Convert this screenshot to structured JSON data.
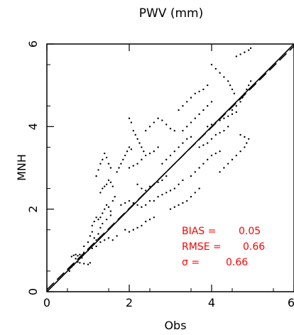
{
  "chart_data": {
    "type": "scatter",
    "title": "PWV (mm)",
    "xlabel": "Obs",
    "ylabel": "MNH",
    "xlim": [
      0,
      6
    ],
    "ylim": [
      0,
      6
    ],
    "xticks": [
      "0",
      "2",
      "4",
      "6"
    ],
    "yticks": [
      "0",
      "2",
      "4",
      "6"
    ],
    "grid": false,
    "legend": "none",
    "reference_lines": [
      {
        "name": "1:1",
        "style": "solid",
        "x": [
          0,
          6
        ],
        "y": [
          0,
          6
        ]
      },
      {
        "name": "fit",
        "style": "dashed",
        "x": [
          0,
          6
        ],
        "y": [
          0.05,
          5.95
        ]
      }
    ],
    "stats": {
      "bias_label": "BIAS =",
      "bias_value": "0.05",
      "rmse_label": "RMSE =",
      "rmse_value": "0.66",
      "sigma_label": "σ =",
      "sigma_value": "0.66",
      "color": "#ff0000"
    },
    "point_color": "#000000",
    "points": [
      [
        0.55,
        0.5
      ],
      [
        0.6,
        0.6
      ],
      [
        0.65,
        0.65
      ],
      [
        0.7,
        0.8
      ],
      [
        0.75,
        0.72
      ],
      [
        0.8,
        0.9
      ],
      [
        0.85,
        0.82
      ],
      [
        0.9,
        0.95
      ],
      [
        0.6,
        0.85
      ],
      [
        0.65,
        0.88
      ],
      [
        0.7,
        0.9
      ],
      [
        0.75,
        0.87
      ],
      [
        0.8,
        0.7
      ],
      [
        0.9,
        0.68
      ],
      [
        1.0,
        0.66
      ],
      [
        1.05,
        0.7
      ],
      [
        0.9,
        1.1
      ],
      [
        1.0,
        1.2
      ],
      [
        1.05,
        1.35
      ],
      [
        1.1,
        1.45
      ],
      [
        1.15,
        1.3
      ],
      [
        1.2,
        1.25
      ],
      [
        1.25,
        1.4
      ],
      [
        1.3,
        1.55
      ],
      [
        1.0,
        1.0
      ],
      [
        1.1,
        1.05
      ],
      [
        1.2,
        1.1
      ],
      [
        1.3,
        1.2
      ],
      [
        1.4,
        1.25
      ],
      [
        1.5,
        1.3
      ],
      [
        1.6,
        1.25
      ],
      [
        1.7,
        1.35
      ],
      [
        1.3,
        1.8
      ],
      [
        1.35,
        1.9
      ],
      [
        1.4,
        2.0
      ],
      [
        1.45,
        2.1
      ],
      [
        1.5,
        2.05
      ],
      [
        1.55,
        1.95
      ],
      [
        1.6,
        2.2
      ],
      [
        1.65,
        2.3
      ],
      [
        1.1,
        1.6
      ],
      [
        1.15,
        1.7
      ],
      [
        1.2,
        1.8
      ],
      [
        1.25,
        1.75
      ],
      [
        1.35,
        1.65
      ],
      [
        1.45,
        1.75
      ],
      [
        1.55,
        1.85
      ],
      [
        1.2,
        2.8
      ],
      [
        1.25,
        2.95
      ],
      [
        1.3,
        3.1
      ],
      [
        1.35,
        3.2
      ],
      [
        1.4,
        3.35
      ],
      [
        1.45,
        3.25
      ],
      [
        1.5,
        3.1
      ],
      [
        1.55,
        3.0
      ],
      [
        1.3,
        2.4
      ],
      [
        1.35,
        2.5
      ],
      [
        1.4,
        2.55
      ],
      [
        1.45,
        2.6
      ],
      [
        1.5,
        2.7
      ],
      [
        1.55,
        2.65
      ],
      [
        1.6,
        2.55
      ],
      [
        1.7,
        2.9
      ],
      [
        1.75,
        3.0
      ],
      [
        1.8,
        3.1
      ],
      [
        1.85,
        3.2
      ],
      [
        1.9,
        3.3
      ],
      [
        1.95,
        3.4
      ],
      [
        2.0,
        3.5
      ],
      [
        2.05,
        3.45
      ],
      [
        1.8,
        2.1
      ],
      [
        1.9,
        2.15
      ],
      [
        2.0,
        2.2
      ],
      [
        2.1,
        2.15
      ],
      [
        2.2,
        2.1
      ],
      [
        2.3,
        2.05
      ],
      [
        2.4,
        2.1
      ],
      [
        2.5,
        2.2
      ],
      [
        1.9,
        1.5
      ],
      [
        2.0,
        1.45
      ],
      [
        2.1,
        1.5
      ],
      [
        2.2,
        1.55
      ],
      [
        2.3,
        1.6
      ],
      [
        2.4,
        1.7
      ],
      [
        2.5,
        1.75
      ],
      [
        2.6,
        1.8
      ],
      [
        2.0,
        4.2
      ],
      [
        2.05,
        4.1
      ],
      [
        2.1,
        3.9
      ],
      [
        2.15,
        3.8
      ],
      [
        2.2,
        3.7
      ],
      [
        2.25,
        3.6
      ],
      [
        2.3,
        3.5
      ],
      [
        2.35,
        3.4
      ],
      [
        2.0,
        3.0
      ],
      [
        2.1,
        3.05
      ],
      [
        2.2,
        3.1
      ],
      [
        2.3,
        3.2
      ],
      [
        2.4,
        3.3
      ],
      [
        2.5,
        3.35
      ],
      [
        2.6,
        3.4
      ],
      [
        2.7,
        3.5
      ],
      [
        2.2,
        2.6
      ],
      [
        2.3,
        2.5
      ],
      [
        2.4,
        2.45
      ],
      [
        2.5,
        2.55
      ],
      [
        2.6,
        2.6
      ],
      [
        2.7,
        2.65
      ],
      [
        2.8,
        2.7
      ],
      [
        2.9,
        2.8
      ],
      [
        2.4,
        3.9
      ],
      [
        2.5,
        4.0
      ],
      [
        2.6,
        4.1
      ],
      [
        2.7,
        4.2
      ],
      [
        2.8,
        4.15
      ],
      [
        2.9,
        4.05
      ],
      [
        3.0,
        3.95
      ],
      [
        3.1,
        3.9
      ],
      [
        2.6,
        2.2
      ],
      [
        2.7,
        2.3
      ],
      [
        2.8,
        2.35
      ],
      [
        2.9,
        2.4
      ],
      [
        3.0,
        2.45
      ],
      [
        3.1,
        2.5
      ],
      [
        3.2,
        2.6
      ],
      [
        3.3,
        2.7
      ],
      [
        2.8,
        3.1
      ],
      [
        2.9,
        3.2
      ],
      [
        3.0,
        3.3
      ],
      [
        3.1,
        3.4
      ],
      [
        3.2,
        3.5
      ],
      [
        3.3,
        3.6
      ],
      [
        3.4,
        3.7
      ],
      [
        3.5,
        3.75
      ],
      [
        3.0,
        2.0
      ],
      [
        3.1,
        2.05
      ],
      [
        3.2,
        2.1
      ],
      [
        3.3,
        2.15
      ],
      [
        3.4,
        2.2
      ],
      [
        3.5,
        2.3
      ],
      [
        3.6,
        2.4
      ],
      [
        3.7,
        2.5
      ],
      [
        3.2,
        4.4
      ],
      [
        3.3,
        4.5
      ],
      [
        3.4,
        4.6
      ],
      [
        3.5,
        4.7
      ],
      [
        3.6,
        4.8
      ],
      [
        3.7,
        4.85
      ],
      [
        3.8,
        4.9
      ],
      [
        3.9,
        5.0
      ],
      [
        3.3,
        3.9
      ],
      [
        3.4,
        4.0
      ],
      [
        3.5,
        4.1
      ],
      [
        3.6,
        4.2
      ],
      [
        3.7,
        4.3
      ],
      [
        3.8,
        4.4
      ],
      [
        3.9,
        4.5
      ],
      [
        4.0,
        4.6
      ],
      [
        3.5,
        2.8
      ],
      [
        3.6,
        2.9
      ],
      [
        3.7,
        3.0
      ],
      [
        3.8,
        3.1
      ],
      [
        3.9,
        3.2
      ],
      [
        4.0,
        3.3
      ],
      [
        4.1,
        3.35
      ],
      [
        4.2,
        3.4
      ],
      [
        3.7,
        3.5
      ],
      [
        3.8,
        3.55
      ],
      [
        3.9,
        3.6
      ],
      [
        4.0,
        3.7
      ],
      [
        4.1,
        3.8
      ],
      [
        4.2,
        3.85
      ],
      [
        4.3,
        3.9
      ],
      [
        4.4,
        4.0
      ],
      [
        4.0,
        5.5
      ],
      [
        4.1,
        5.4
      ],
      [
        4.2,
        5.3
      ],
      [
        4.3,
        5.2
      ],
      [
        4.4,
        5.1
      ],
      [
        4.45,
        5.0
      ],
      [
        4.5,
        4.9
      ],
      [
        4.55,
        4.8
      ],
      [
        4.2,
        2.9
      ],
      [
        4.3,
        3.0
      ],
      [
        4.4,
        3.1
      ],
      [
        4.5,
        3.2
      ],
      [
        4.6,
        3.3
      ],
      [
        4.7,
        3.4
      ],
      [
        4.8,
        3.5
      ],
      [
        4.85,
        3.6
      ],
      [
        4.5,
        4.4
      ],
      [
        4.6,
        4.5
      ],
      [
        4.7,
        4.6
      ],
      [
        4.75,
        4.7
      ],
      [
        4.8,
        4.8
      ],
      [
        4.85,
        4.9
      ],
      [
        4.9,
        5.0
      ],
      [
        4.95,
        5.1
      ],
      [
        4.6,
        5.7
      ],
      [
        4.7,
        5.75
      ],
      [
        4.8,
        5.8
      ],
      [
        4.9,
        5.85
      ],
      [
        4.95,
        5.9
      ],
      [
        4.7,
        3.8
      ],
      [
        4.8,
        3.75
      ],
      [
        4.9,
        3.7
      ],
      [
        3.9,
        4.0
      ],
      [
        4.0,
        4.05
      ],
      [
        4.1,
        4.1
      ],
      [
        4.2,
        4.15
      ],
      [
        4.3,
        4.2
      ],
      [
        4.4,
        4.25
      ],
      [
        4.5,
        4.3
      ],
      [
        4.6,
        4.35
      ]
    ]
  }
}
